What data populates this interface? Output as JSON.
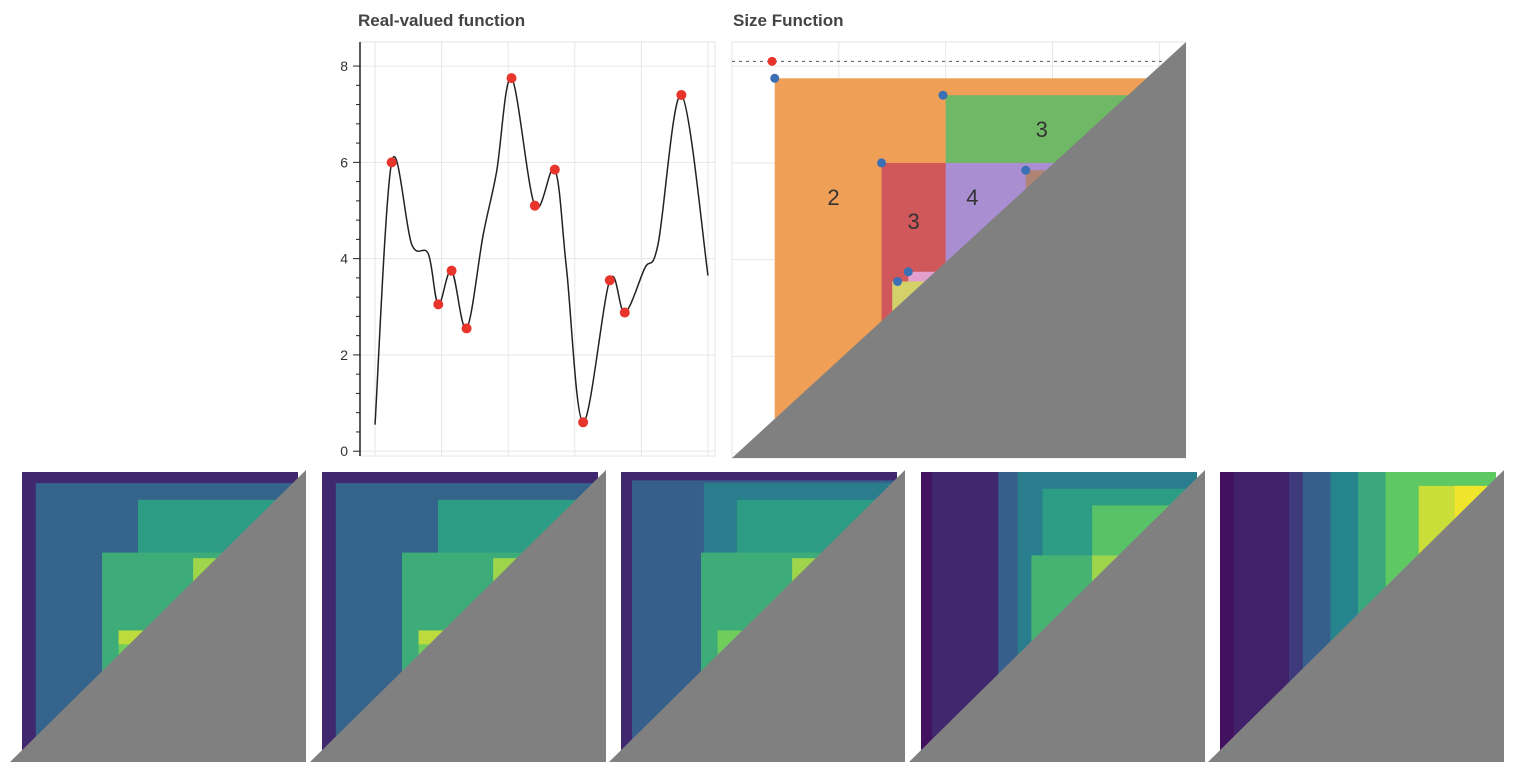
{
  "chart_data": [
    {
      "type": "line",
      "title": "Real-valued function",
      "ylim": [
        -0.1,
        8.5
      ],
      "xlim": [
        0,
        20
      ],
      "yticks": [
        0,
        2,
        4,
        6,
        8
      ],
      "grid": true,
      "line_color": "#222222",
      "marker_color": "#e8352b",
      "curve": [
        {
          "x": 0.0,
          "y": 0.55
        },
        {
          "x": 1.0,
          "y": 6.0
        },
        {
          "x": 2.2,
          "y": 4.3
        },
        {
          "x": 3.2,
          "y": 4.1
        },
        {
          "x": 3.8,
          "y": 3.05
        },
        {
          "x": 4.6,
          "y": 3.75
        },
        {
          "x": 5.5,
          "y": 2.55
        },
        {
          "x": 6.5,
          "y": 4.5
        },
        {
          "x": 7.3,
          "y": 5.8
        },
        {
          "x": 8.2,
          "y": 7.75
        },
        {
          "x": 9.6,
          "y": 5.1
        },
        {
          "x": 10.8,
          "y": 5.85
        },
        {
          "x": 11.5,
          "y": 3.8
        },
        {
          "x": 12.5,
          "y": 0.6
        },
        {
          "x": 14.1,
          "y": 3.55
        },
        {
          "x": 15.0,
          "y": 2.88
        },
        {
          "x": 16.2,
          "y": 3.8
        },
        {
          "x": 17.0,
          "y": 4.3
        },
        {
          "x": 18.4,
          "y": 7.4
        },
        {
          "x": 20.0,
          "y": 3.65
        }
      ],
      "points": [
        {
          "x": 1.0,
          "y": 6.0
        },
        {
          "x": 3.8,
          "y": 3.05
        },
        {
          "x": 4.6,
          "y": 3.75
        },
        {
          "x": 5.5,
          "y": 2.55
        },
        {
          "x": 8.2,
          "y": 7.75
        },
        {
          "x": 9.6,
          "y": 5.1
        },
        {
          "x": 10.8,
          "y": 5.85
        },
        {
          "x": 12.5,
          "y": 0.6
        },
        {
          "x": 14.1,
          "y": 3.55
        },
        {
          "x": 15.0,
          "y": 2.88
        },
        {
          "x": 18.4,
          "y": 7.4
        }
      ]
    },
    {
      "type": "area",
      "title": "Size Function",
      "xlim": [
        0,
        8.5
      ],
      "ylim": [
        -0.1,
        8.5
      ],
      "grid": true,
      "infinity_line_y": 8.1,
      "diagonal_fill": "#808080",
      "regions": [
        {
          "x": 0.8,
          "y": 7.75,
          "color": "#f0a056",
          "label": "2",
          "label_x": 1.9,
          "label_y": 5.3
        },
        {
          "x": 4.0,
          "y": 7.4,
          "color": "#6fb866",
          "label": "3",
          "label_x": 5.8,
          "label_y": 6.7
        },
        {
          "x": 2.8,
          "y": 6.0,
          "color": "#d0575a",
          "label": "3",
          "label_x": 3.4,
          "label_y": 4.8
        },
        {
          "x": 4.0,
          "y": 6.0,
          "color": "#a98ed2",
          "label": "4",
          "label_x": 4.5,
          "label_y": 5.3
        },
        {
          "x": 5.5,
          "y": 5.85,
          "color": "#b08474",
          "label": "",
          "label_x": 0,
          "label_y": 0
        },
        {
          "x": 3.3,
          "y": 3.75,
          "color": "#e39fce",
          "label": "",
          "label_x": 0,
          "label_y": 0
        },
        {
          "x": 3.3,
          "y": 3.55,
          "color": "#aaaaaa",
          "label": "",
          "label_x": 0,
          "label_y": 0
        },
        {
          "x": 3.0,
          "y": 3.55,
          "color": "#d4d06a",
          "label": "",
          "label_x": 0,
          "label_y": 0
        }
      ],
      "points": [
        {
          "x": 0.75,
          "y": 8.1,
          "color": "#e8352b"
        },
        {
          "x": 0.8,
          "y": 7.75,
          "color": "#3b6fb6"
        },
        {
          "x": 3.95,
          "y": 7.4,
          "color": "#3b6fb6"
        },
        {
          "x": 2.8,
          "y": 6.0,
          "color": "#3b6fb6"
        },
        {
          "x": 5.5,
          "y": 5.85,
          "color": "#3b6fb6"
        },
        {
          "x": 3.3,
          "y": 3.75,
          "color": "#3b6fb6"
        },
        {
          "x": 3.1,
          "y": 3.55,
          "color": "#3b6fb6"
        }
      ]
    },
    {
      "type": "heatmap",
      "colormap": "viridis",
      "diagonal_fill": "#808080",
      "panels": [
        {
          "cells": [
            [
              0,
              0,
              1,
              1,
              0.12
            ],
            [
              0.05,
              0.04,
              1,
              1,
              0.32
            ],
            [
              0.42,
              0.1,
              1,
              1,
              0.55
            ],
            [
              0.29,
              0.29,
              1,
              1,
              0.62
            ],
            [
              0.62,
              0.31,
              1,
              1,
              0.85
            ],
            [
              0.35,
              0.57,
              1,
              1,
              0.78
            ],
            [
              0.35,
              0.57,
              0.45,
              0.62,
              0.9
            ]
          ]
        },
        {
          "cells": [
            [
              0,
              0,
              1,
              1,
              0.12
            ],
            [
              0.05,
              0.04,
              1,
              1,
              0.32
            ],
            [
              0.42,
              0.1,
              1,
              1,
              0.55
            ],
            [
              0.29,
              0.29,
              1,
              1,
              0.62
            ],
            [
              0.62,
              0.31,
              1,
              1,
              0.85
            ],
            [
              0.35,
              0.57,
              1,
              1,
              0.78
            ],
            [
              0.35,
              0.57,
              0.45,
              0.62,
              0.9
            ]
          ]
        },
        {
          "cells": [
            [
              0,
              0,
              1,
              1,
              0.12
            ],
            [
              0.04,
              0.03,
              1,
              1,
              0.3
            ],
            [
              0.3,
              0.04,
              1,
              1,
              0.42
            ],
            [
              0.42,
              0.1,
              1,
              1,
              0.55
            ],
            [
              0.29,
              0.29,
              1,
              1,
              0.62
            ],
            [
              0.62,
              0.31,
              1,
              1,
              0.85
            ],
            [
              0.35,
              0.57,
              1,
              1,
              0.78
            ]
          ]
        },
        {
          "cells": [
            [
              0,
              0,
              1,
              1,
              0.05
            ],
            [
              0.04,
              0,
              1,
              1,
              0.12
            ],
            [
              0.28,
              0,
              1,
              1,
              0.3
            ],
            [
              0.35,
              0,
              1,
              1,
              0.42
            ],
            [
              0.44,
              0.06,
              1,
              1,
              0.55
            ],
            [
              0.62,
              0.12,
              1,
              1,
              0.72
            ],
            [
              0.4,
              0.3,
              1,
              1,
              0.65
            ],
            [
              0.62,
              0.3,
              1,
              1,
              0.85
            ]
          ]
        },
        {
          "cells": [
            [
              0,
              0,
              1,
              1,
              0.05
            ],
            [
              0.05,
              0,
              1,
              1,
              0.1
            ],
            [
              0.25,
              0,
              1,
              1,
              0.18
            ],
            [
              0.3,
              0,
              1,
              1,
              0.3
            ],
            [
              0.4,
              0,
              1,
              1,
              0.45
            ],
            [
              0.5,
              0,
              1,
              1,
              0.6
            ],
            [
              0.6,
              0,
              1,
              1,
              0.75
            ],
            [
              0.72,
              0.05,
              1,
              1,
              0.92
            ],
            [
              0.85,
              0.05,
              1,
              1,
              0.98
            ]
          ]
        }
      ]
    }
  ]
}
